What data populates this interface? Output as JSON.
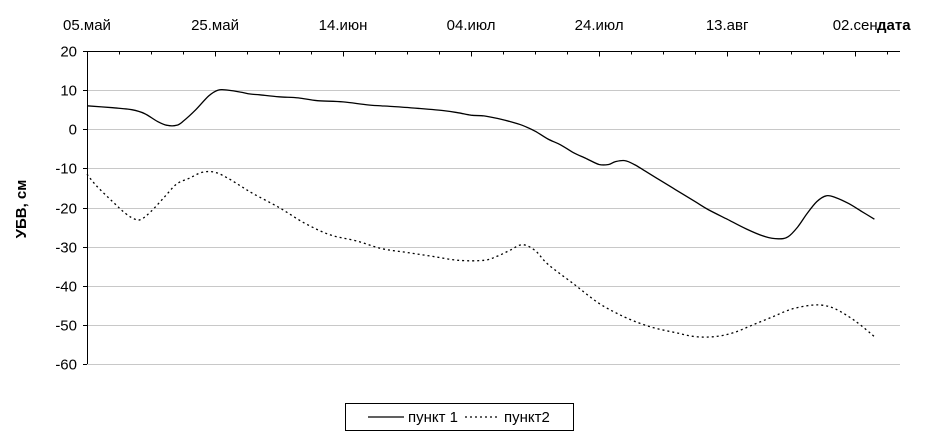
{
  "chart_data": {
    "type": "line",
    "xlabel": "дата",
    "ylabel": "УБВ, см",
    "x_tick_labels": [
      "05.май",
      "25.май",
      "14.июн",
      "04.июл",
      "24.июл",
      "13.авг",
      "02.сен"
    ],
    "x_range_days": [
      0,
      127
    ],
    "x_tick_days": [
      0,
      20,
      40,
      60,
      80,
      100,
      120
    ],
    "ylim": [
      -60,
      20
    ],
    "y_ticks": [
      20,
      10,
      0,
      -10,
      -20,
      -30,
      -40,
      -50,
      -60
    ],
    "grid": "horizontal",
    "legend_position": "bottom-center",
    "series": [
      {
        "name": "пункт 1",
        "style": "solid",
        "color": "#000000",
        "points": [
          [
            0,
            6
          ],
          [
            4,
            5.5
          ],
          [
            7,
            5
          ],
          [
            9,
            4
          ],
          [
            11,
            2
          ],
          [
            12.5,
            1
          ],
          [
            14,
            1
          ],
          [
            15,
            2
          ],
          [
            17,
            5
          ],
          [
            19,
            8.5
          ],
          [
            20.5,
            10
          ],
          [
            22,
            10
          ],
          [
            24,
            9.5
          ],
          [
            25.5,
            9
          ],
          [
            27,
            8.8
          ],
          [
            30,
            8.3
          ],
          [
            33,
            8
          ],
          [
            36,
            7.3
          ],
          [
            40,
            7
          ],
          [
            44,
            6.2
          ],
          [
            48,
            5.8
          ],
          [
            52,
            5.3
          ],
          [
            56,
            4.7
          ],
          [
            58,
            4.2
          ],
          [
            60,
            3.6
          ],
          [
            62,
            3.4
          ],
          [
            64,
            2.8
          ],
          [
            66,
            2
          ],
          [
            68,
            1
          ],
          [
            70,
            -0.5
          ],
          [
            72,
            -2.5
          ],
          [
            74,
            -4
          ],
          [
            76,
            -6
          ],
          [
            78,
            -7.5
          ],
          [
            80,
            -9
          ],
          [
            81.5,
            -9
          ],
          [
            82.5,
            -8.3
          ],
          [
            84,
            -8
          ],
          [
            85.5,
            -9
          ],
          [
            87,
            -10.5
          ],
          [
            89,
            -12.5
          ],
          [
            92,
            -15.5
          ],
          [
            95,
            -18.5
          ],
          [
            97,
            -20.5
          ],
          [
            100,
            -23
          ],
          [
            103,
            -25.5
          ],
          [
            106,
            -27.5
          ],
          [
            108,
            -28
          ],
          [
            109.5,
            -27.5
          ],
          [
            111,
            -25
          ],
          [
            112.5,
            -21.5
          ],
          [
            114,
            -18.5
          ],
          [
            115.5,
            -17
          ],
          [
            117,
            -17.5
          ],
          [
            119,
            -19
          ],
          [
            121,
            -21
          ],
          [
            123,
            -23
          ]
        ]
      },
      {
        "name": "пункт2",
        "style": "dotted",
        "color": "#000000",
        "points": [
          [
            0,
            -11.5
          ],
          [
            1.5,
            -14.5
          ],
          [
            4,
            -18.5
          ],
          [
            6,
            -21.5
          ],
          [
            7.5,
            -23
          ],
          [
            8.5,
            -23
          ],
          [
            10,
            -21
          ],
          [
            12,
            -17.5
          ],
          [
            14,
            -14
          ],
          [
            16,
            -12.5
          ],
          [
            18,
            -11
          ],
          [
            20,
            -11
          ],
          [
            22,
            -12.5
          ],
          [
            24,
            -14.5
          ],
          [
            26,
            -16.5
          ],
          [
            30,
            -20
          ],
          [
            34,
            -24
          ],
          [
            38,
            -27
          ],
          [
            42,
            -28.5
          ],
          [
            46,
            -30.5
          ],
          [
            50,
            -31.5
          ],
          [
            54,
            -32.5
          ],
          [
            58,
            -33.5
          ],
          [
            62,
            -33.5
          ],
          [
            64,
            -32.5
          ],
          [
            66,
            -31
          ],
          [
            68,
            -29.5
          ],
          [
            70,
            -31
          ],
          [
            72,
            -34.5
          ],
          [
            76,
            -39.5
          ],
          [
            80,
            -44.5
          ],
          [
            84,
            -48
          ],
          [
            88,
            -50.5
          ],
          [
            92,
            -52
          ],
          [
            95,
            -53
          ],
          [
            98,
            -53
          ],
          [
            101,
            -52
          ],
          [
            104,
            -50
          ],
          [
            107,
            -48
          ],
          [
            110,
            -46
          ],
          [
            113,
            -45
          ],
          [
            115,
            -45
          ],
          [
            117,
            -46
          ],
          [
            120,
            -49
          ],
          [
            123,
            -53
          ]
        ]
      }
    ]
  }
}
